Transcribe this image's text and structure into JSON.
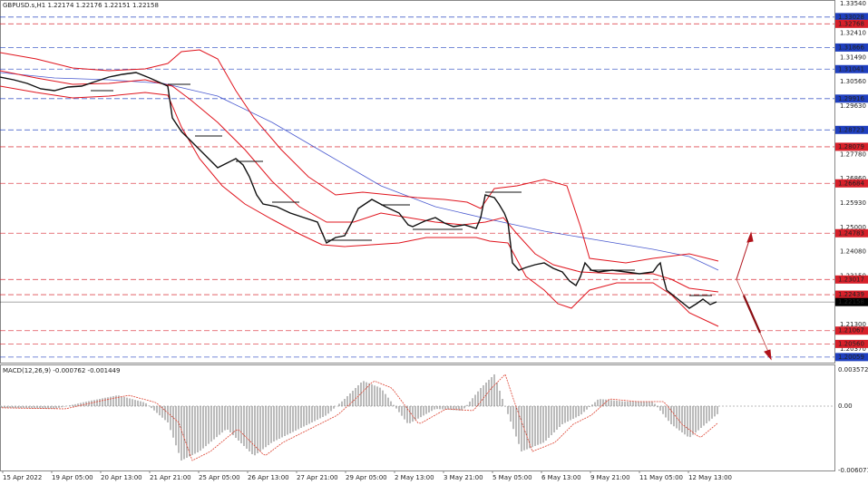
{
  "header": {
    "title": "GBPUSD.s,H1 1.22174 1.22176 1.22151 1.22158"
  },
  "price_axis": {
    "labels": [
      "1.33540",
      "1.32410",
      "1.31490",
      "1.30560",
      "1.29630",
      "1.27780",
      "1.26860",
      "1.25930",
      "1.25000",
      "1.24080",
      "1.23150",
      "1.21300",
      "1.20370"
    ]
  },
  "levels": [
    {
      "label": "1.33028",
      "color": "#1f3fbf"
    },
    {
      "label": "1.32768",
      "color": "#d8202a"
    },
    {
      "label": "1.31866",
      "color": "#1f3fbf"
    },
    {
      "label": "1.31041",
      "color": "#1f3fbf"
    },
    {
      "label": "1.29916",
      "color": "#1f3fbf"
    },
    {
      "label": "1.28723",
      "color": "#1f3fbf"
    },
    {
      "label": "1.28079",
      "color": "#d8202a"
    },
    {
      "label": "1.26684",
      "color": "#d8202a"
    },
    {
      "label": "1.24783",
      "color": "#d8202a"
    },
    {
      "label": "1.23017",
      "color": "#d8202a"
    },
    {
      "label": "1.22439",
      "color": "#d8202a"
    },
    {
      "label": "1.22158",
      "color": "#000000"
    },
    {
      "label": "1.21067",
      "color": "#d8202a"
    },
    {
      "label": "1.20560",
      "color": "#d8202a"
    },
    {
      "label": "1.20059",
      "color": "#1f3fbf"
    }
  ],
  "macd": {
    "title": "MACD(12,26,9) -0.000762 -0.001449",
    "labels": [
      "0.003572",
      "0.00",
      "-0.006071"
    ]
  },
  "time_axis": {
    "labels": [
      "15 Apr 2022",
      "19 Apr 05:00",
      "20 Apr 13:00",
      "21 Apr 21:00",
      "25 Apr 05:00",
      "26 Apr 13:00",
      "27 Apr 21:00",
      "29 Apr 05:00",
      "2 May 13:00",
      "3 May 21:00",
      "5 May 05:00",
      "6 May 13:00",
      "9 May 21:00",
      "11 May 05:00",
      "12 May 13:00"
    ]
  }
}
